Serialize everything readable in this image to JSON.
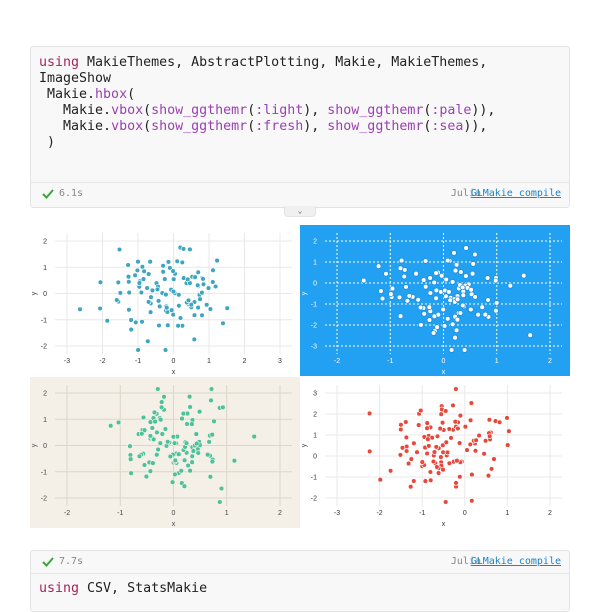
{
  "cell1": {
    "code_lines": [
      [
        [
          "kw",
          "using"
        ],
        [
          "tx",
          " MakieThemes, AbstractPlotting, Makie, MakieThemes,"
        ]
      ],
      [
        [
          "tx",
          "ImageShow"
        ]
      ],
      [
        [
          "tx",
          " Makie."
        ],
        [
          "fn",
          "hbox"
        ],
        [
          "tx",
          "("
        ]
      ],
      [
        [
          "tx",
          "   Makie."
        ],
        [
          "fn",
          "vbox"
        ],
        [
          "tx",
          "("
        ],
        [
          "fn",
          "show_ggthemr"
        ],
        [
          "tx",
          "("
        ],
        [
          "sym",
          ":light"
        ],
        [
          "tx",
          "), "
        ],
        [
          "fn",
          "show_ggthemr"
        ],
        [
          "tx",
          "("
        ],
        [
          "sym",
          ":pale"
        ],
        [
          "tx",
          ")),"
        ]
      ],
      [
        [
          "tx",
          "   Makie."
        ],
        [
          "fn",
          "vbox"
        ],
        [
          "tx",
          "("
        ],
        [
          "fn",
          "show_ggthemr"
        ],
        [
          "tx",
          "("
        ],
        [
          "sym",
          ":fresh"
        ],
        [
          "tx",
          "), "
        ],
        [
          "fn",
          "show_ggthemr"
        ],
        [
          "tx",
          "("
        ],
        [
          "sym",
          ":sea"
        ],
        [
          "tx",
          ")),"
        ]
      ],
      [
        [
          "tx",
          " )"
        ]
      ]
    ],
    "time": "6.1s",
    "language": "Julia",
    "link": "GLMakie compile"
  },
  "collapse_icon": "chevron-down-icon",
  "plots": [
    {
      "name": "plot-light",
      "bg": "#ffffff",
      "grid": "#e8e8e8",
      "text": "#333333",
      "point": "#3ea6c0",
      "point_edge": "#ffffff",
      "xlabel": "x",
      "ylabel": "y",
      "xticks": [
        "-3",
        "-2",
        "-1",
        "0",
        "1",
        "2",
        "3"
      ],
      "yticks": [
        "-2",
        "-1",
        "0",
        "1",
        "2"
      ]
    },
    {
      "name": "plot-pale-blue",
      "bg": "#22a0f2",
      "grid": "#ffffff",
      "text": "#ffffff",
      "point": "#ffffff",
      "point_edge": "#1a8bd6",
      "xlabel": "x",
      "ylabel": "y",
      "xticks": [
        "-2",
        "-1",
        "0",
        "1",
        "2"
      ],
      "yticks": [
        "-3",
        "-2",
        "-1",
        "0",
        "1",
        "2"
      ]
    },
    {
      "name": "plot-fresh",
      "bg": "#f4f0e8",
      "grid": "#ddd6c8",
      "text": "#444444",
      "point": "#4bc29a",
      "point_edge": "#f4f0e8",
      "xlabel": "x",
      "ylabel": "y",
      "xticks": [
        "-2",
        "-1",
        "0",
        "1",
        "2"
      ],
      "yticks": [
        "-2",
        "-1",
        "0",
        "1",
        "2"
      ]
    },
    {
      "name": "plot-sea",
      "bg": "#ffffff",
      "grid": "#e8e8e8",
      "text": "#333333",
      "point": "#e8483b",
      "point_edge": "#ffffff",
      "xlabel": "x",
      "ylabel": "y",
      "xticks": [
        "-3",
        "-2",
        "-1",
        "0",
        "1",
        "2"
      ],
      "yticks": [
        "-2",
        "-1",
        "0",
        "1",
        "2",
        "3"
      ]
    }
  ],
  "cell2": {
    "time": "7.7s",
    "language": "Julia",
    "link": "GLMakie compile",
    "code_lines": [
      [
        [
          "kw",
          "using"
        ],
        [
          "tx",
          " CSV, StatsMakie"
        ]
      ]
    ]
  }
}
